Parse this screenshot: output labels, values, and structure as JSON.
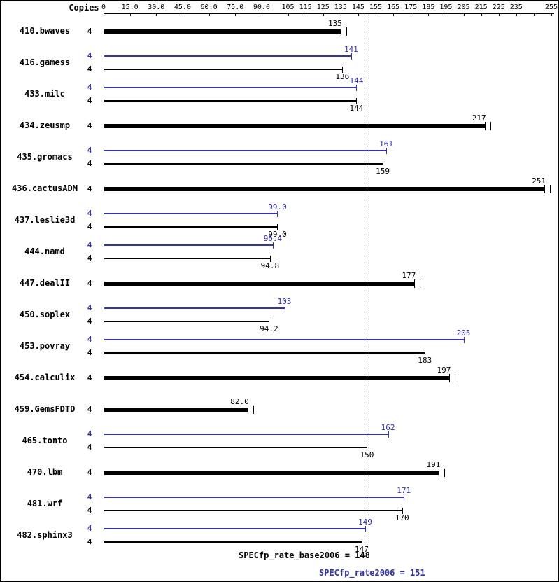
{
  "colors": {
    "peak_blue": "#3333aa",
    "base_black": "#000000"
  },
  "header": {
    "copies_label": "Copies"
  },
  "footer": {
    "base_metric_text": "SPECfp_rate_base2006 = 148",
    "peak_metric_text": "SPECfp_rate2006 = 151"
  },
  "chart_data": {
    "type": "bar",
    "orientation": "horizontal",
    "title": "",
    "x_axis": {
      "min": 0,
      "max": 255,
      "ticks": [
        {
          "v": 0,
          "label": "0"
        },
        {
          "v": 15,
          "label": "15.0"
        },
        {
          "v": 30,
          "label": "30.0"
        },
        {
          "v": 45,
          "label": "45.0"
        },
        {
          "v": 60,
          "label": "60.0"
        },
        {
          "v": 75,
          "label": "75.0"
        },
        {
          "v": 90,
          "label": "90.0"
        },
        {
          "v": 105,
          "label": "105"
        },
        {
          "v": 115,
          "label": "115"
        },
        {
          "v": 125,
          "label": "125"
        },
        {
          "v": 135,
          "label": "135"
        },
        {
          "v": 145,
          "label": "145"
        },
        {
          "v": 155,
          "label": "155"
        },
        {
          "v": 165,
          "label": "165"
        },
        {
          "v": 175,
          "label": "175"
        },
        {
          "v": 185,
          "label": "185"
        },
        {
          "v": 195,
          "label": "195"
        },
        {
          "v": 205,
          "label": "205"
        },
        {
          "v": 215,
          "label": "215"
        },
        {
          "v": 225,
          "label": "225"
        },
        {
          "v": 235,
          "label": "235"
        },
        {
          "v": 245,
          "label": ""
        },
        {
          "v": 255,
          "label": "255"
        }
      ]
    },
    "benchmarks": [
      {
        "name": "410.bwaves",
        "copies": 4,
        "peak": null,
        "peak_label": null,
        "base": 135,
        "base_label": "135"
      },
      {
        "name": "416.gamess",
        "copies": 4,
        "peak": 141,
        "peak_label": "141",
        "base": 136,
        "base_label": "136"
      },
      {
        "name": "433.milc",
        "copies": 4,
        "peak": 144,
        "peak_label": "144",
        "base": 144,
        "base_label": "144"
      },
      {
        "name": "434.zeusmp",
        "copies": 4,
        "peak": null,
        "peak_label": null,
        "base": 217,
        "base_label": "217"
      },
      {
        "name": "435.gromacs",
        "copies": 4,
        "peak": 161,
        "peak_label": "161",
        "base": 159,
        "base_label": "159"
      },
      {
        "name": "436.cactusADM",
        "copies": 4,
        "peak": null,
        "peak_label": null,
        "base": 251,
        "base_label": "251"
      },
      {
        "name": "437.leslie3d",
        "copies": 4,
        "peak": 99.0,
        "peak_label": "99.0",
        "base": 99.0,
        "base_label": "99.0"
      },
      {
        "name": "444.namd",
        "copies": 4,
        "peak": 96.4,
        "peak_label": "96.4",
        "base": 94.8,
        "base_label": "94.8"
      },
      {
        "name": "447.dealII",
        "copies": 4,
        "peak": null,
        "peak_label": null,
        "base": 177,
        "base_label": "177"
      },
      {
        "name": "450.soplex",
        "copies": 4,
        "peak": 103,
        "peak_label": "103",
        "base": 94.2,
        "base_label": "94.2"
      },
      {
        "name": "453.povray",
        "copies": 4,
        "peak": 205,
        "peak_label": "205",
        "base": 183,
        "base_label": "183"
      },
      {
        "name": "454.calculix",
        "copies": 4,
        "peak": null,
        "peak_label": null,
        "base": 197,
        "base_label": "197"
      },
      {
        "name": "459.GemsFDTD",
        "copies": 4,
        "peak": null,
        "peak_label": null,
        "base": 82.0,
        "base_label": "82.0"
      },
      {
        "name": "465.tonto",
        "copies": 4,
        "peak": 162,
        "peak_label": "162",
        "base": 150,
        "base_label": "150"
      },
      {
        "name": "470.lbm",
        "copies": 4,
        "peak": null,
        "peak_label": null,
        "base": 191,
        "base_label": "191"
      },
      {
        "name": "481.wrf",
        "copies": 4,
        "peak": 171,
        "peak_label": "171",
        "base": 170,
        "base_label": "170"
      },
      {
        "name": "482.sphinx3",
        "copies": 4,
        "peak": 149,
        "peak_label": "149",
        "base": 147,
        "base_label": "147"
      }
    ],
    "reference_line": {
      "value": 151,
      "style": "dotted"
    },
    "overall": {
      "base": 148,
      "peak": 151
    }
  }
}
